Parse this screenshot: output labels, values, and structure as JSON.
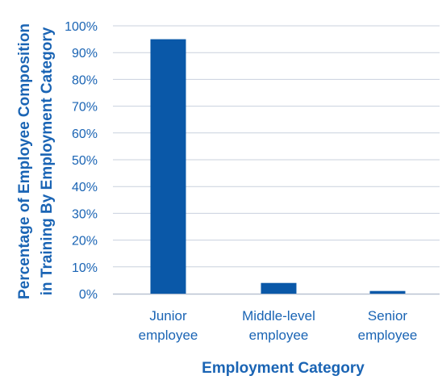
{
  "chart_data": {
    "type": "bar",
    "categories": [
      [
        "Junior",
        "employee"
      ],
      [
        "Middle-level",
        "employee"
      ],
      [
        "Senior",
        "employee"
      ]
    ],
    "values": [
      95,
      4,
      1
    ],
    "ylim": [
      0,
      100
    ],
    "y_ticks": [
      "0%",
      "10%",
      "20%",
      "30%",
      "40%",
      "50%",
      "60%",
      "70%",
      "80%",
      "90%",
      "100%"
    ],
    "xlabel": "Employment Category",
    "ylabel": [
      "Percentage of Employee Composition",
      "in Training By Employment Category"
    ],
    "grid": true,
    "colors": {
      "bar": "#0a58a8",
      "text": "#1a64b4",
      "grid": "#c9d1de",
      "axis": "#b9c3d2"
    }
  }
}
